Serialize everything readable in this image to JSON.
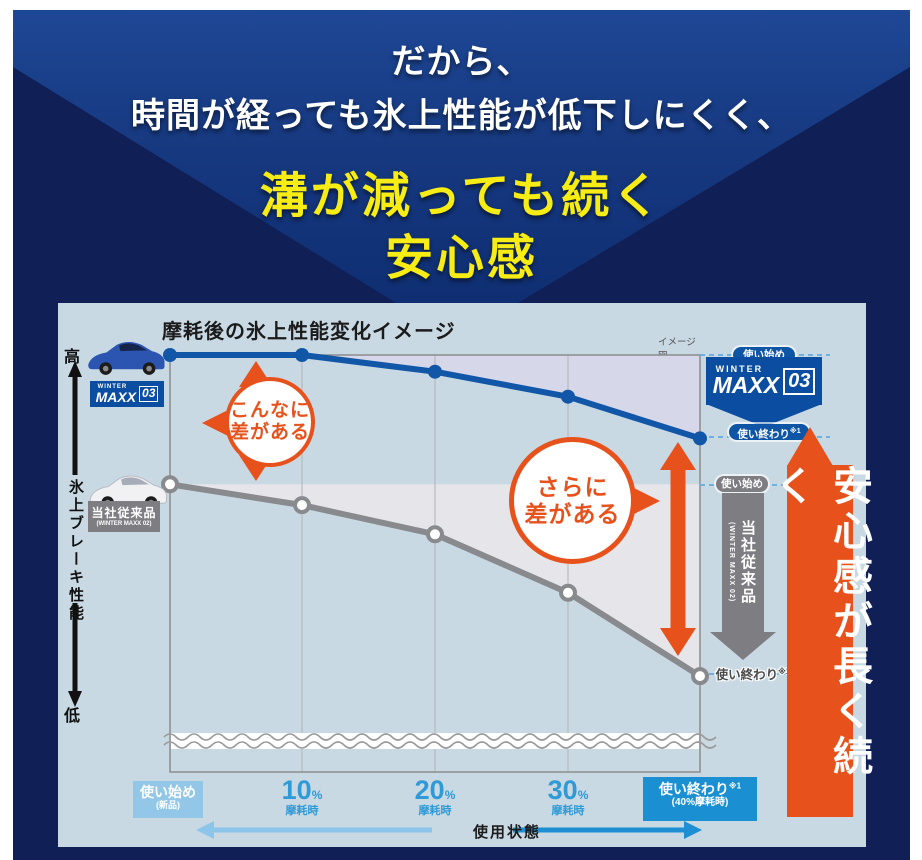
{
  "header": {
    "line1": "だから、",
    "line2": "時間が経っても氷上性能が低下しにくく、",
    "line3": "溝が減っても続く",
    "line4": "安心感"
  },
  "panel": {
    "title": "摩耗後の氷上性能変化イメージ",
    "note": "イメージ図",
    "y_axis": {
      "high": "高",
      "label": "氷上ブレーキ性能",
      "low": "低"
    },
    "x_axis": {
      "title": "使用状態",
      "start": {
        "label": "使い始め",
        "sub": "(新品)"
      },
      "mid": [
        {
          "num": "10",
          "pct": "%",
          "sub": "摩耗時"
        },
        {
          "num": "20",
          "pct": "%",
          "sub": "摩耗時"
        },
        {
          "num": "30",
          "pct": "%",
          "sub": "摩耗時"
        }
      ],
      "end": {
        "label": "使い終わり",
        "ref": "※1",
        "sub": "(40%摩耗時)"
      }
    }
  },
  "products": {
    "maxx03": {
      "brand_top": "WINTER",
      "brand_main": "MAXX",
      "brand_num": "03"
    },
    "legacy": {
      "name": "当社従来品",
      "sub": "(WINTER MAXX 02)"
    }
  },
  "annotations": {
    "bubble1": {
      "line1": "こんなに",
      "line2": "差がある"
    },
    "bubble2": {
      "line1": "さらに",
      "line2": "差がある"
    },
    "blue_start": "使い始め",
    "blue_end": {
      "label": "使い終わり",
      "ref": "※1"
    },
    "gray_start": "使い始め",
    "gray_end": {
      "label": "使い終わり",
      "ref": "※1"
    },
    "banner": "安心感が長く続く"
  },
  "colors": {
    "orange": "#e7521c",
    "blue_line": "#1256a8",
    "gray_line": "#898a8e",
    "brand_blue": "#0b4da0",
    "accent_yellow": "#f7ec13",
    "panel_bg": "#c8d9e4",
    "navy_bg": "#101f55"
  },
  "chart_data": {
    "type": "line",
    "title": "摩耗後の氷上性能変化イメージ",
    "note": "イメージ図",
    "x_categories": [
      "使い始め(新品)",
      "10%摩耗時",
      "20%摩耗時",
      "30%摩耗時",
      "使い終わり※1(40%摩耗時)"
    ],
    "xlabel": "使用状態",
    "ylabel": "氷上ブレーキ性能",
    "ytick_labels": [
      "低",
      "高"
    ],
    "ylim": [
      0,
      100
    ],
    "grid": "vertical-only",
    "series": [
      {
        "name": "WINTER MAXX 03",
        "color": "#1256a8",
        "marker": "filled",
        "values": [
          100,
          100,
          96,
          90,
          80
        ]
      },
      {
        "name": "当社従来品 (WINTER MAXX 02)",
        "color": "#898a8e",
        "marker": "open",
        "values": [
          69,
          64,
          57,
          43,
          23
        ]
      }
    ]
  }
}
